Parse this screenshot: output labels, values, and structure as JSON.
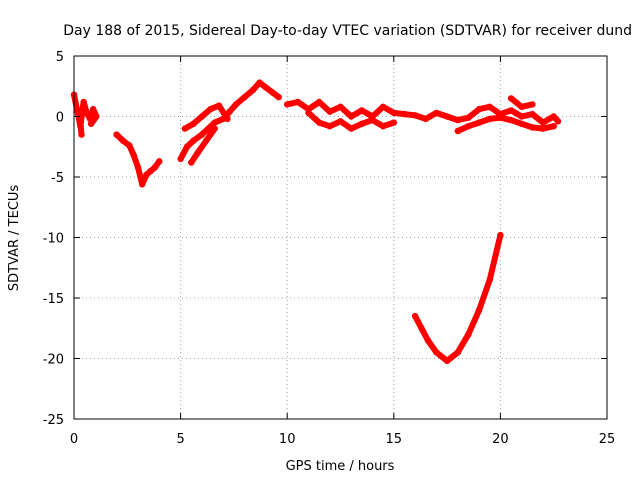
{
  "chart_data": {
    "type": "scatter",
    "title": "Day 188 of 2015, Sidereal Day-to-day VTEC variation (SDTVAR) for receiver dund",
    "xlabel": "GPS time / hours",
    "ylabel": "SDTVAR / TECUs",
    "xlim": [
      0,
      25
    ],
    "ylim": [
      -25,
      5
    ],
    "xticks": [
      0,
      5,
      10,
      15,
      20,
      25
    ],
    "yticks": [
      -25,
      -20,
      -15,
      -10,
      -5,
      0,
      5
    ],
    "grid": true,
    "color": "#ff0000",
    "series": [
      {
        "name": "SDTVAR",
        "segments": [
          [
            [
              0.0,
              1.8
            ],
            [
              0.15,
              0.5
            ],
            [
              0.3,
              -0.8
            ],
            [
              0.45,
              1.2
            ],
            [
              0.6,
              0.3
            ],
            [
              0.75,
              -0.2
            ],
            [
              0.9,
              0.6
            ],
            [
              1.05,
              0.0
            ],
            [
              0.8,
              -0.6
            ]
          ],
          [
            [
              0.3,
              -0.5
            ],
            [
              0.35,
              -1.5
            ]
          ],
          [
            [
              2.0,
              -1.5
            ],
            [
              2.3,
              -2.0
            ],
            [
              2.6,
              -2.4
            ],
            [
              2.8,
              -3.2
            ],
            [
              3.0,
              -4.2
            ],
            [
              3.2,
              -5.6
            ],
            [
              3.4,
              -4.8
            ],
            [
              3.6,
              -4.5
            ],
            [
              3.8,
              -4.2
            ],
            [
              4.0,
              -3.7
            ]
          ],
          [
            [
              5.0,
              -3.5
            ],
            [
              5.3,
              -2.5
            ],
            [
              5.6,
              -2.0
            ],
            [
              6.0,
              -1.5
            ],
            [
              6.3,
              -1.0
            ],
            [
              6.6,
              -0.5
            ],
            [
              7.0,
              -0.2
            ],
            [
              7.3,
              0.4
            ],
            [
              7.6,
              1.0
            ],
            [
              8.0,
              1.6
            ],
            [
              8.4,
              2.2
            ],
            [
              8.7,
              2.8
            ],
            [
              9.0,
              2.4
            ],
            [
              9.3,
              2.0
            ],
            [
              9.6,
              1.6
            ]
          ],
          [
            [
              5.2,
              -1.0
            ],
            [
              5.6,
              -0.6
            ],
            [
              6.0,
              0.0
            ],
            [
              6.4,
              0.6
            ],
            [
              6.8,
              0.9
            ],
            [
              7.2,
              -0.2
            ]
          ],
          [
            [
              5.5,
              -3.8
            ],
            [
              5.8,
              -3.0
            ],
            [
              6.2,
              -2.0
            ],
            [
              6.6,
              -1.0
            ]
          ],
          [
            [
              10.0,
              1.0
            ],
            [
              10.5,
              1.2
            ],
            [
              11.0,
              0.6
            ],
            [
              11.5,
              1.2
            ],
            [
              12.0,
              0.4
            ],
            [
              12.5,
              0.8
            ],
            [
              13.0,
              0.0
            ],
            [
              13.5,
              0.5
            ],
            [
              14.0,
              0.0
            ],
            [
              14.5,
              0.8
            ],
            [
              15.0,
              0.3
            ],
            [
              15.5,
              0.2
            ],
            [
              16.0,
              0.1
            ],
            [
              16.5,
              -0.2
            ],
            [
              17.0,
              0.3
            ],
            [
              17.5,
              0.0
            ],
            [
              18.0,
              -0.3
            ],
            [
              18.5,
              -0.1
            ],
            [
              19.0,
              0.6
            ],
            [
              19.5,
              0.8
            ],
            [
              20.0,
              0.2
            ],
            [
              20.5,
              0.5
            ],
            [
              21.0,
              0.0
            ],
            [
              21.5,
              0.2
            ],
            [
              22.0,
              -0.5
            ],
            [
              22.5,
              0.0
            ],
            [
              22.7,
              -0.4
            ]
          ],
          [
            [
              11.0,
              0.3
            ],
            [
              11.5,
              -0.5
            ],
            [
              12.0,
              -0.8
            ],
            [
              12.5,
              -0.4
            ],
            [
              13.0,
              -1.0
            ],
            [
              13.5,
              -0.6
            ],
            [
              14.0,
              -0.3
            ],
            [
              14.5,
              -0.8
            ],
            [
              15.0,
              -0.5
            ]
          ],
          [
            [
              18.0,
              -1.2
            ],
            [
              18.5,
              -0.8
            ],
            [
              19.0,
              -0.5
            ],
            [
              19.5,
              -0.2
            ],
            [
              20.0,
              -0.1
            ],
            [
              20.5,
              -0.3
            ],
            [
              21.0,
              -0.6
            ],
            [
              21.5,
              -0.9
            ],
            [
              22.0,
              -1.0
            ],
            [
              22.5,
              -0.8
            ]
          ],
          [
            [
              20.5,
              1.5
            ],
            [
              21.0,
              0.8
            ],
            [
              21.5,
              1.0
            ]
          ],
          [
            [
              16.0,
              -16.5
            ],
            [
              16.3,
              -17.5
            ],
            [
              16.6,
              -18.5
            ],
            [
              17.0,
              -19.5
            ],
            [
              17.5,
              -20.2
            ],
            [
              18.0,
              -19.5
            ],
            [
              18.5,
              -18.0
            ],
            [
              19.0,
              -16.0
            ],
            [
              19.5,
              -13.5
            ],
            [
              20.0,
              -9.8
            ]
          ]
        ]
      }
    ]
  }
}
